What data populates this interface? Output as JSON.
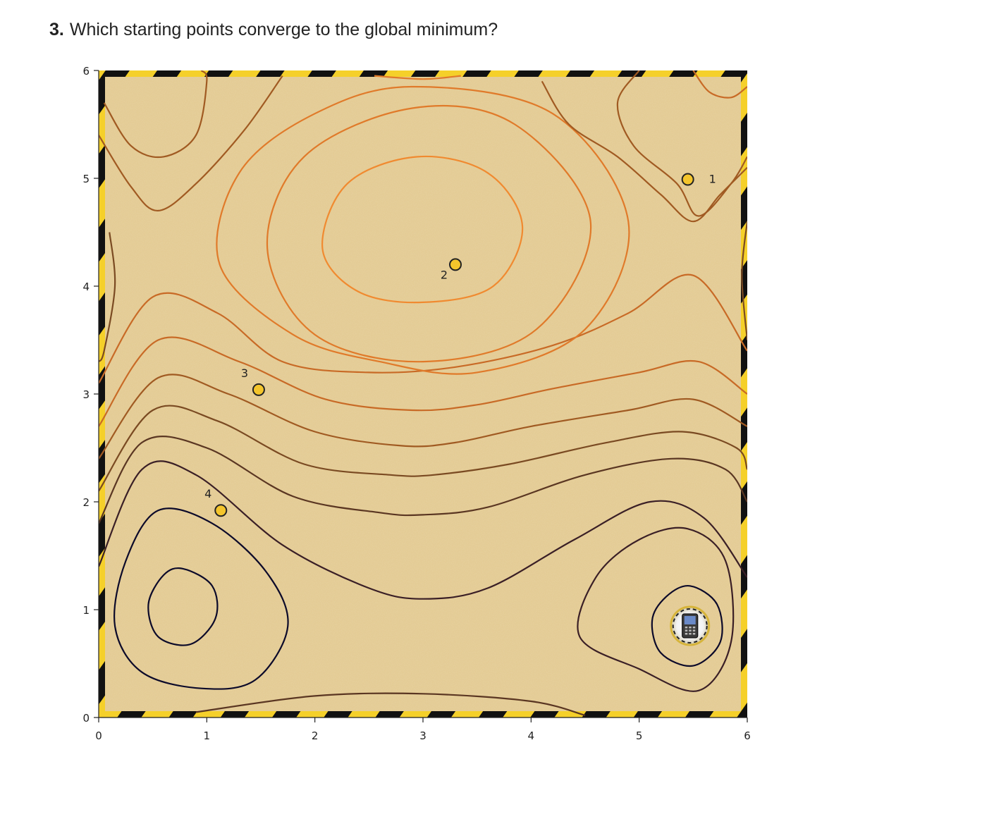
{
  "question": {
    "number": "3.",
    "text": "Which starting points converge to the global minimum?"
  },
  "chart_data": {
    "type": "contour",
    "title": "",
    "xlabel": "",
    "ylabel": "",
    "xlim": [
      0,
      6
    ],
    "ylim": [
      0,
      6
    ],
    "xticks": [
      "0",
      "1",
      "2",
      "3",
      "4",
      "5",
      "6"
    ],
    "yticks": [
      "0",
      "1",
      "2",
      "3",
      "4",
      "5",
      "6"
    ],
    "background": "sand texture with yellow-black hazard stripe border",
    "colormap": [
      "#0c0a2a",
      "#3a1f26",
      "#5a3622",
      "#7a4a22",
      "#a05a22",
      "#c86a26",
      "#e07a2a",
      "#f08a30"
    ],
    "start_points": [
      {
        "label": "1",
        "x": 5.45,
        "y": 4.99
      },
      {
        "label": "2",
        "x": 3.3,
        "y": 4.2
      },
      {
        "label": "3",
        "x": 1.48,
        "y": 3.04
      },
      {
        "label": "4",
        "x": 1.13,
        "y": 1.92
      }
    ],
    "global_minimum": {
      "x": 5.47,
      "y": 0.85,
      "marker": "phone-icon"
    },
    "local_minimum": {
      "x": 0.78,
      "y": 1.03
    }
  }
}
